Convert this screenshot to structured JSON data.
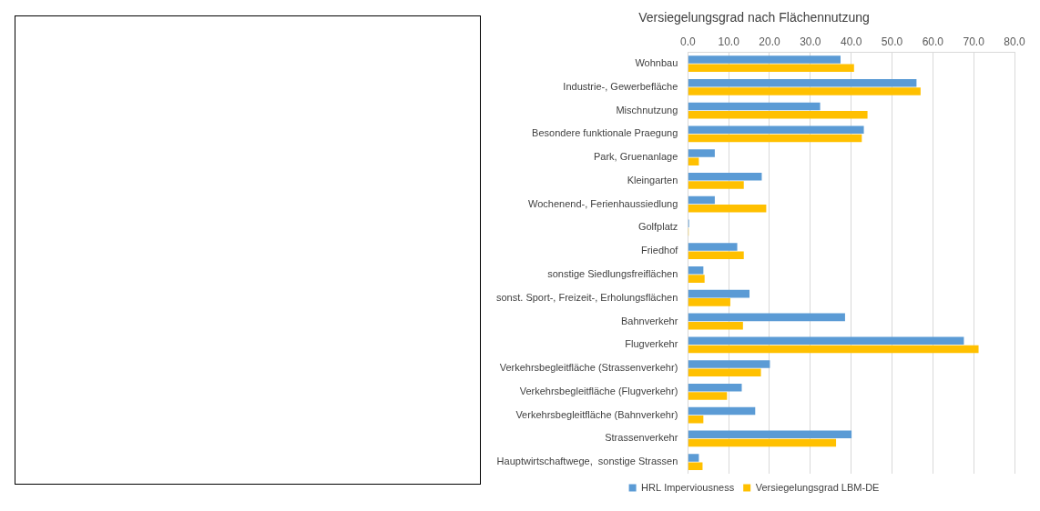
{
  "chart_data": {
    "type": "bar",
    "orientation": "horizontal",
    "title": "Versiegelungsgrad nach Flächennutzung",
    "categories": [
      "Wohnbau",
      "Industrie-, Gewerbefläche",
      "Mischnutzung",
      "Besondere funktionale Praegung",
      "Park, Gruenanlage",
      "Kleingarten",
      "Wochenend-, Ferienhaussiedlung",
      "Golfplatz",
      "Friedhof",
      "sonstige Siedlungsfreiflächen",
      "sonst. Sport-, Freizeit-, Erholungsflächen",
      "Bahnverkehr",
      "Flugverkehr",
      "Verkehrsbegleitfläche (Strassenverkehr)",
      "Verkehrsbegleitfläche (Flugverkehr)",
      "Verkehrsbegleitfläche (Bahnverkehr)",
      "Strassenverkehr",
      "Hauptwirtschaftwege,  sonstige Strassen"
    ],
    "series": [
      {
        "name": "HRL Imperviousness",
        "color": "#5b9bd5",
        "values": [
          37.4,
          56.0,
          32.4,
          43.1,
          6.6,
          18.1,
          6.6,
          0.3,
          12.1,
          3.8,
          15.1,
          38.5,
          67.6,
          20.1,
          13.2,
          16.5,
          40.1,
          2.7
        ]
      },
      {
        "name": "Versiegelungsgrad LBM-DE",
        "color": "#ffc000",
        "values": [
          40.7,
          57.0,
          44.0,
          42.6,
          2.7,
          13.7,
          19.2,
          0.2,
          13.7,
          4.1,
          10.4,
          13.5,
          71.2,
          17.9,
          9.6,
          3.8,
          36.3,
          3.6
        ]
      }
    ],
    "xlim": [
      0,
      80
    ],
    "xticks": [
      {
        "value": 0,
        "label": "0.0"
      },
      {
        "value": 10,
        "label": "10.0"
      },
      {
        "value": 20,
        "label": "20.0"
      },
      {
        "value": 30,
        "label": "30.0"
      },
      {
        "value": 40,
        "label": "40.0"
      },
      {
        "value": 50,
        "label": "50.0"
      },
      {
        "value": 60,
        "label": "60.0"
      },
      {
        "value": 70,
        "label": "70.0"
      },
      {
        "value": 80,
        "label": "80.0"
      }
    ],
    "grid": true,
    "legend": "bottom"
  }
}
